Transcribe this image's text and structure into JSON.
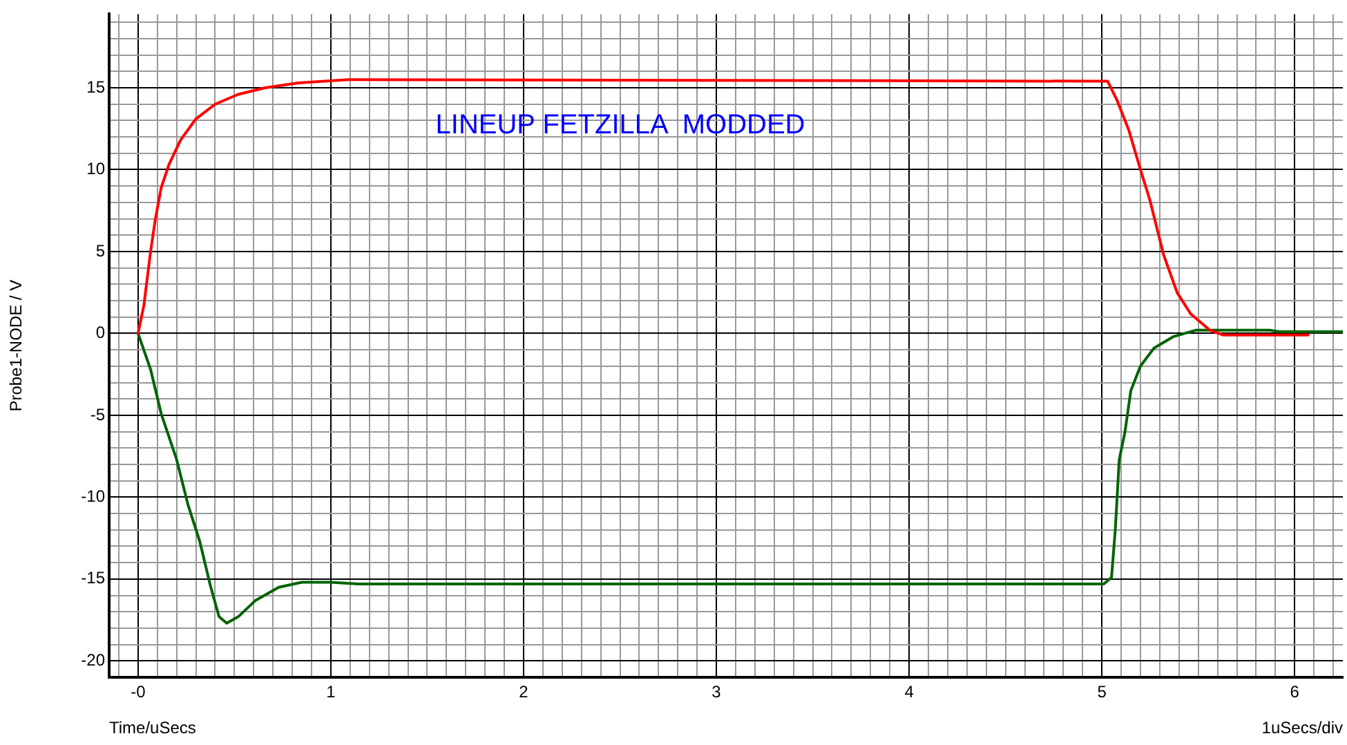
{
  "chart_data": {
    "type": "line",
    "xlabel": "Time/uSecs",
    "ylabel": "Probe1-NODE / V",
    "annotations": [
      "LINEUP FETZILLA  MODDED",
      "1uSecs/div"
    ],
    "xlim": [
      -0.15,
      6.25
    ],
    "ylim": [
      -21,
      19.5
    ],
    "xticks": [
      {
        "value": -0.1,
        "label": null
      },
      {
        "value": 0,
        "label": "-0"
      },
      {
        "value": 0.1,
        "label": null
      },
      {
        "value": 0.2,
        "label": null
      },
      {
        "value": 0.3,
        "label": null
      },
      {
        "value": 0.4,
        "label": null
      },
      {
        "value": 0.5,
        "label": null
      },
      {
        "value": 0.6,
        "label": null
      },
      {
        "value": 0.7,
        "label": null
      },
      {
        "value": 0.8,
        "label": null
      },
      {
        "value": 0.9,
        "label": null
      },
      1,
      {
        "value": 1.1,
        "label": null
      },
      {
        "value": 1.2,
        "label": null
      },
      {
        "value": 1.3,
        "label": null
      },
      {
        "value": 1.4,
        "label": null
      },
      {
        "value": 1.5,
        "label": null
      },
      {
        "value": 1.6,
        "label": null
      },
      {
        "value": 1.7,
        "label": null
      },
      {
        "value": 1.8,
        "label": null
      },
      {
        "value": 1.9,
        "label": null
      },
      2,
      {
        "value": 2.1,
        "label": null
      },
      {
        "value": 2.2,
        "label": null
      },
      {
        "value": 2.3,
        "label": null
      },
      {
        "value": 2.4,
        "label": null
      },
      {
        "value": 2.5,
        "label": null
      },
      {
        "value": 2.6,
        "label": null
      },
      {
        "value": 2.7,
        "label": null
      },
      {
        "value": 2.8,
        "label": null
      },
      {
        "value": 2.9,
        "label": null
      },
      3,
      {
        "value": 3.1,
        "label": null
      },
      {
        "value": 3.2,
        "label": null
      },
      {
        "value": 3.3,
        "label": null
      },
      {
        "value": 3.4,
        "label": null
      },
      {
        "value": 3.5,
        "label": null
      },
      {
        "value": 3.6,
        "label": null
      },
      {
        "value": 3.7,
        "label": null
      },
      {
        "value": 3.8,
        "label": null
      },
      {
        "value": 3.9,
        "label": null
      },
      4,
      {
        "value": 4.1,
        "label": null
      },
      {
        "value": 4.2,
        "label": null
      },
      {
        "value": 4.3,
        "label": null
      },
      {
        "value": 4.4,
        "label": null
      },
      {
        "value": 4.5,
        "label": null
      },
      {
        "value": 4.6,
        "label": null
      },
      {
        "value": 4.7,
        "label": null
      },
      {
        "value": 4.8,
        "label": null
      },
      {
        "value": 4.9,
        "label": null
      },
      5,
      {
        "value": 5.1,
        "label": null
      },
      {
        "value": 5.2,
        "label": null
      },
      {
        "value": 5.3,
        "label": null
      },
      {
        "value": 5.4,
        "label": null
      },
      {
        "value": 5.5,
        "label": null
      },
      {
        "value": 5.6,
        "label": null
      },
      {
        "value": 5.7,
        "label": null
      },
      {
        "value": 5.8,
        "label": null
      },
      {
        "value": 5.9,
        "label": null
      },
      6,
      {
        "value": 6.1,
        "label": null
      },
      {
        "value": 6.2,
        "label": null
      }
    ],
    "yticks": [
      -20,
      {
        "value": -19,
        "label": null
      },
      {
        "value": -18,
        "label": null
      },
      {
        "value": -17,
        "label": null
      },
      {
        "value": -16,
        "label": null
      },
      -15,
      {
        "value": -14,
        "label": null
      },
      {
        "value": -13,
        "label": null
      },
      {
        "value": -12,
        "label": null
      },
      {
        "value": -11,
        "label": null
      },
      -10,
      {
        "value": -9,
        "label": null
      },
      {
        "value": -8,
        "label": null
      },
      {
        "value": -7,
        "label": null
      },
      {
        "value": -6,
        "label": null
      },
      -5,
      {
        "value": -4,
        "label": null
      },
      {
        "value": -3,
        "label": null
      },
      {
        "value": -2,
        "label": null
      },
      {
        "value": -1,
        "label": null
      },
      0,
      {
        "value": 1,
        "label": null
      },
      {
        "value": 2,
        "label": null
      },
      {
        "value": 3,
        "label": null
      },
      {
        "value": 4,
        "label": null
      },
      5,
      {
        "value": 6,
        "label": null
      },
      {
        "value": 7,
        "label": null
      },
      {
        "value": 8,
        "label": null
      },
      {
        "value": 9,
        "label": null
      },
      10,
      {
        "value": 11,
        "label": null
      },
      {
        "value": 12,
        "label": null
      },
      {
        "value": 13,
        "label": null
      },
      {
        "value": 14,
        "label": null
      },
      15,
      {
        "value": 16,
        "label": null
      },
      {
        "value": 17,
        "label": null
      },
      {
        "value": 18,
        "label": null
      },
      {
        "value": 19,
        "label": null
      }
    ],
    "grid": true,
    "legend": false,
    "marker": "none",
    "line_style": "solid",
    "series": [
      {
        "color": "#ff0000",
        "x": [
          0,
          0.03,
          0.065,
          0.09,
          0.12,
          0.16,
          0.22,
          0.3,
          0.4,
          0.52,
          0.66,
          0.83,
          1.09,
          5.03,
          5.08,
          5.14,
          5.2,
          5.25,
          5.32,
          5.39,
          5.46,
          5.56,
          5.63,
          6.07
        ],
        "values": [
          0,
          1.7,
          5,
          7,
          8.9,
          10.3,
          11.8,
          13.1,
          14,
          14.6,
          15,
          15.3,
          15.5,
          15.4,
          14.2,
          12.4,
          10,
          8.1,
          4.8,
          2.5,
          1.2,
          0.2,
          -0.1,
          -0.1
        ]
      },
      {
        "color": "#006400",
        "x": [
          0,
          0.065,
          0.12,
          0.2,
          0.26,
          0.32,
          0.375,
          0.42,
          0.46,
          0.52,
          0.61,
          0.73,
          0.85,
          1,
          1.14,
          5.01,
          5.05,
          5.07,
          5.09,
          5.12,
          5.15,
          5.2,
          5.27,
          5.37,
          5.49,
          5.87,
          5.92,
          6.25
        ],
        "values": [
          0,
          -2.2,
          -4.9,
          -7.7,
          -10.5,
          -12.7,
          -15.4,
          -17.3,
          -17.7,
          -17.3,
          -16.3,
          -15.5,
          -15.2,
          -15.2,
          -15.3,
          -15.3,
          -14.9,
          -11.9,
          -7.7,
          -6,
          -3.5,
          -2,
          -0.9,
          -0.2,
          0.2,
          0.2,
          0.1,
          0.1
        ]
      }
    ]
  }
}
